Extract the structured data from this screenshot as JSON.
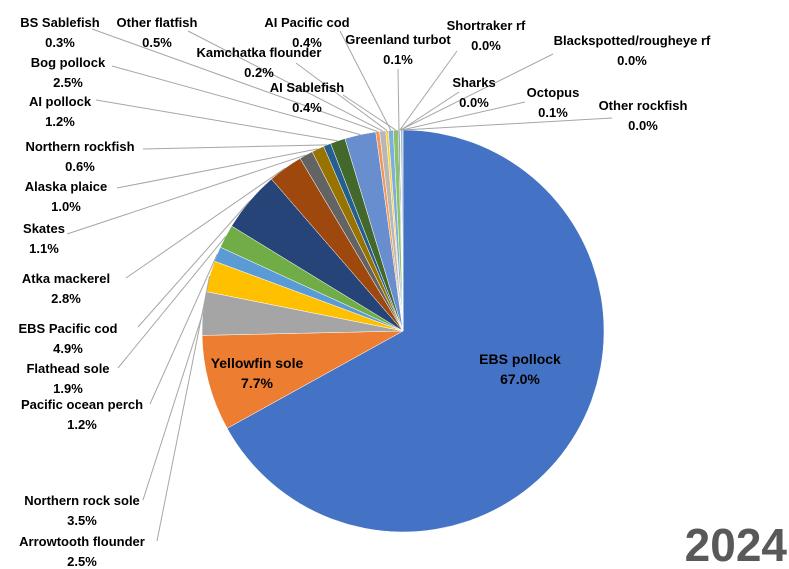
{
  "chart_data": {
    "type": "pie",
    "year_label": "2024",
    "slices": [
      {
        "name": "EBS pollock",
        "value": 67.0,
        "label": "67.0%",
        "color": "#4472c4"
      },
      {
        "name": "Yellowfin sole",
        "value": 7.7,
        "label": "7.7%",
        "color": "#ed7d31"
      },
      {
        "name": "Northern rock sole",
        "value": 3.5,
        "label": "3.5%",
        "color": "#a5a5a5"
      },
      {
        "name": "Arrowtooth flounder",
        "value": 2.5,
        "label": "2.5%",
        "color": "#ffc000"
      },
      {
        "name": "Pacific ocean perch",
        "value": 1.2,
        "label": "1.2%",
        "color": "#5b9bd5"
      },
      {
        "name": "Flathead sole",
        "value": 1.9,
        "label": "1.9%",
        "color": "#70ad47"
      },
      {
        "name": "EBS Pacific cod",
        "value": 4.9,
        "label": "4.9%",
        "color": "#264478"
      },
      {
        "name": "Atka mackerel",
        "value": 2.8,
        "label": "2.8%",
        "color": "#9e480e"
      },
      {
        "name": "Skates",
        "value": 1.1,
        "label": "1.1%",
        "color": "#636363"
      },
      {
        "name": "Alaska plaice",
        "value": 1.0,
        "label": "1.0%",
        "color": "#997300"
      },
      {
        "name": "Northern rockfish",
        "value": 0.6,
        "label": "0.6%",
        "color": "#255e91"
      },
      {
        "name": "AI pollock",
        "value": 1.2,
        "label": "1.2%",
        "color": "#43682b"
      },
      {
        "name": "Bog pollock",
        "value": 2.5,
        "label": "2.5%",
        "color": "#698ed0"
      },
      {
        "name": "BS Sablefish",
        "value": 0.3,
        "label": "0.3%",
        "color": "#f1975a"
      },
      {
        "name": "Other flatfish",
        "value": 0.5,
        "label": "0.5%",
        "color": "#b7b7b7"
      },
      {
        "name": "Kamchatka flounder",
        "value": 0.2,
        "label": "0.2%",
        "color": "#ffcd33"
      },
      {
        "name": "AI Pacific cod",
        "value": 0.4,
        "label": "0.4%",
        "color": "#7cafdd"
      },
      {
        "name": "AI Sablefish",
        "value": 0.4,
        "label": "0.4%",
        "color": "#8cc168"
      },
      {
        "name": "Greenland turbot",
        "value": 0.1,
        "label": "0.1%",
        "color": "#335aa1"
      },
      {
        "name": "Shortraker rf",
        "value": 0.0,
        "label": "0.0%",
        "color": "#c55a11"
      },
      {
        "name": "Blackspotted/rougheye rf",
        "value": 0.0,
        "label": "0.0%",
        "color": "#7f7f7f"
      },
      {
        "name": "Sharks",
        "value": 0.0,
        "label": "0.0%",
        "color": "#bf9000"
      },
      {
        "name": "Octopus",
        "value": 0.1,
        "label": "0.1%",
        "color": "#2e75b6"
      },
      {
        "name": "Other rockfish",
        "value": 0.0,
        "label": "0.0%",
        "color": "#548235"
      }
    ]
  }
}
